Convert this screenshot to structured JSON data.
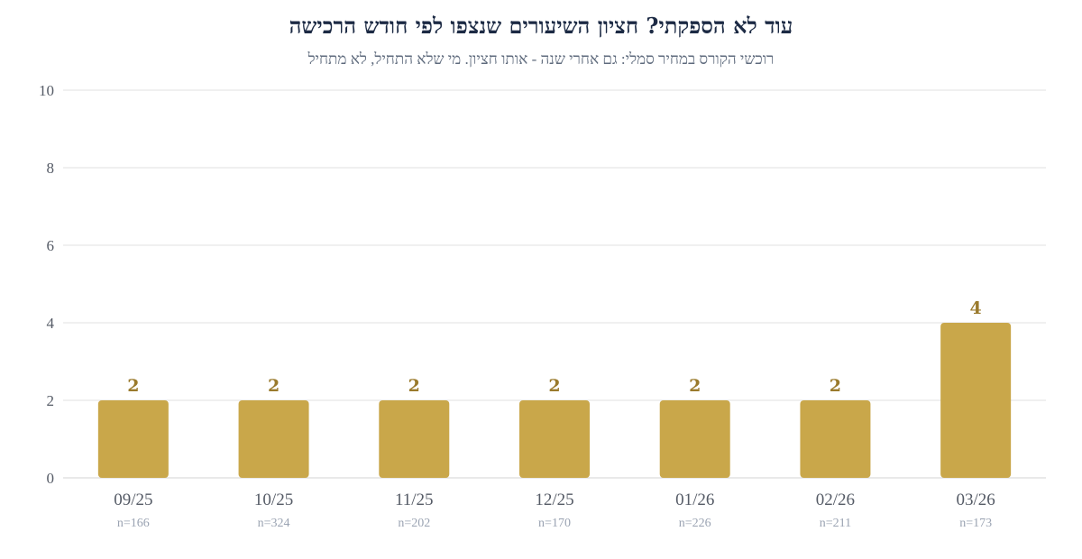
{
  "chart_data": {
    "type": "bar",
    "title": "עוד לא הספקתי? חציון השיעורים שנצפו לפי חודש הרכישה",
    "subtitle": "רוכשי הקורס במחיר סמלי: גם אחרי שנה - אותו חציון. מי שלא התחיל, לא מתחיל",
    "categories": [
      "09/25",
      "10/25",
      "11/25",
      "12/25",
      "01/26",
      "02/26",
      "03/26"
    ],
    "values": [
      2,
      2,
      2,
      2,
      2,
      2,
      4
    ],
    "sample_sizes": [
      "n=166",
      "n=324",
      "n=202",
      "n=170",
      "n=226",
      "n=211",
      "n=173"
    ],
    "ylim": [
      0,
      10
    ],
    "yticks": [
      0,
      2,
      4,
      6,
      8,
      10
    ],
    "xlabel": "",
    "ylabel": "",
    "grid": true,
    "legend": "none",
    "colors": {
      "bar": "#c9a74a",
      "label": "#9a7a2c"
    }
  }
}
